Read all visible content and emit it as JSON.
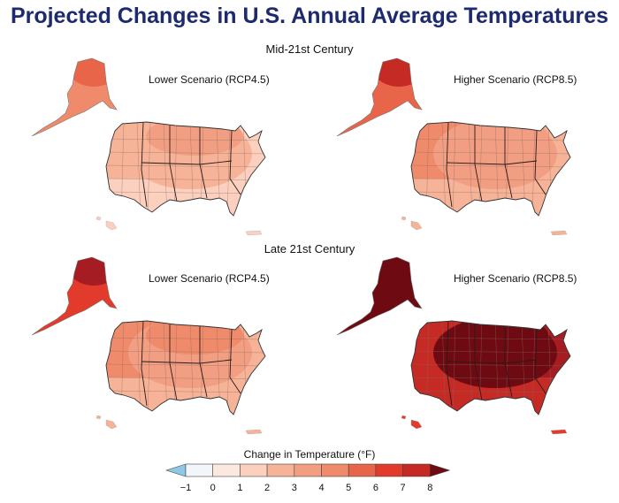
{
  "title": "Projected Changes in U.S. Annual Average Temperatures",
  "rows": [
    {
      "heading": "Mid-21st Century",
      "panels": [
        {
          "scenario": "Lower Scenario (RCP4.5)",
          "west": "#f6b397",
          "east": "#fbd0bf",
          "north": "#f29e82",
          "south": "#fbd0bf",
          "core": "#f6b397",
          "alaska": "#ef8a6a",
          "alaska_north": "#e8654a",
          "hawaii": "#fbd0bf",
          "pr": "#fbd0bf"
        },
        {
          "scenario": "Higher Scenario (RCP8.5)",
          "west": "#ef8a6a",
          "east": "#f6b397",
          "north": "#f29e82",
          "south": "#f6b397",
          "core": "#f29e82",
          "alaska": "#e8654a",
          "alaska_north": "#c52a24",
          "hawaii": "#f6b397",
          "pr": "#f6b397"
        }
      ]
    },
    {
      "heading": "Late 21st Century",
      "panels": [
        {
          "scenario": "Lower Scenario (RCP4.5)",
          "west": "#ef8a6a",
          "east": "#f6b397",
          "north": "#ef8a6a",
          "south": "#f6b397",
          "core": "#f29e82",
          "alaska": "#e23b2c",
          "alaska_north": "#a51d22",
          "hawaii": "#f6b397",
          "pr": "#f6b397"
        },
        {
          "scenario": "Higher Scenario (RCP8.5)",
          "west": "#c52a24",
          "east": "#a51d22",
          "north": "#6e0b12",
          "south": "#c52a24",
          "core": "#6e0b12",
          "alaska": "#6e0b12",
          "alaska_north": "#6e0b12",
          "hawaii": "#e23b2c",
          "pr": "#e23b2c"
        }
      ]
    }
  ],
  "legend": {
    "title": "Change in Temperature (°F)",
    "ticks": [
      "−1",
      "0",
      "1",
      "2",
      "3",
      "4",
      "5",
      "6",
      "7",
      "8"
    ],
    "colors": [
      "#f2f6fb",
      "#fde8df",
      "#fbd0bf",
      "#f6b397",
      "#f29e82",
      "#ef8a6a",
      "#e8654a",
      "#e23b2c",
      "#c52a24"
    ],
    "low_color": "#8fc8e6",
    "high_color": "#6e0b12"
  }
}
